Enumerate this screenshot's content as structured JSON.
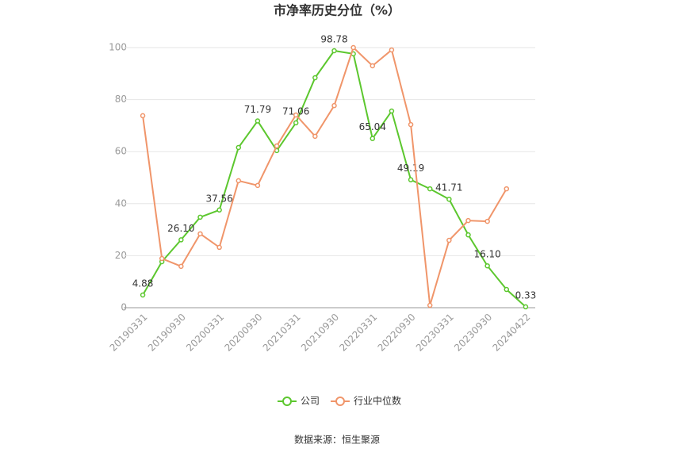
{
  "chart_data": {
    "type": "line",
    "title": "市净率历史分位（%）",
    "categories": [
      "20190331",
      null,
      "20190930",
      null,
      "20200331",
      null,
      "20200930",
      null,
      "20210331",
      null,
      "20210930",
      null,
      "20220331",
      null,
      "20220930",
      null,
      "20230331",
      null,
      "20230930",
      null,
      "20240422"
    ],
    "series": [
      {
        "name": "公司",
        "color": "#5cc72e",
        "values": [
          4.88,
          17.7,
          26.1,
          34.8,
          37.56,
          61.6,
          71.79,
          60.4,
          71.06,
          88.4,
          98.78,
          97.6,
          65.04,
          75.6,
          49.19,
          45.7,
          41.71,
          28.0,
          16.1,
          7.0,
          0.33
        ],
        "value_labels": [
          "4.88",
          null,
          "26.10",
          null,
          "37.56",
          null,
          "71.79",
          null,
          "71.06",
          null,
          "98.78",
          null,
          "65.04",
          null,
          "49.19",
          null,
          "41.71",
          null,
          "16.10",
          null,
          "0.33"
        ]
      },
      {
        "name": "行业中位数",
        "color": "#f0956a",
        "values": [
          73.8,
          18.9,
          15.9,
          28.4,
          23.2,
          48.8,
          47.0,
          62.2,
          74.1,
          65.9,
          77.7,
          100,
          93.0,
          99.1,
          70.4,
          0.9,
          25.9,
          33.5,
          33.2,
          45.7,
          null
        ]
      }
    ],
    "ylim": [
      0,
      100
    ],
    "yticks": [
      0,
      20,
      40,
      60,
      80,
      100
    ],
    "grid": true,
    "legend": "bottom",
    "source": "数据来源：恒生聚源"
  }
}
